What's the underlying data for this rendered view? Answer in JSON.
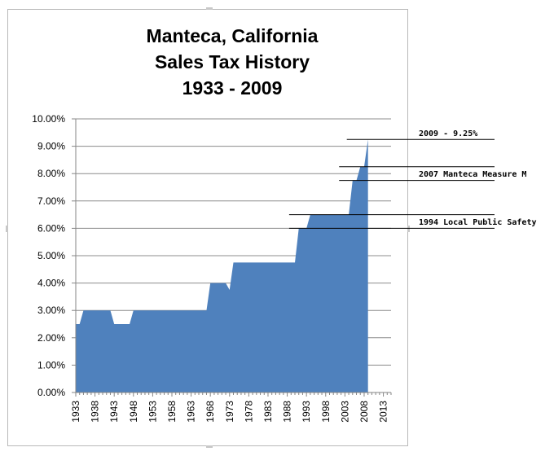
{
  "chart_data": {
    "type": "area",
    "title_lines": [
      "Manteca, California",
      "Sales Tax History",
      "1933 - 2009"
    ],
    "xlabel": "",
    "ylabel": "",
    "xlim": [
      1933,
      2015
    ],
    "ylim": [
      0,
      10
    ],
    "x_ticks": [
      1933,
      1938,
      1943,
      1948,
      1953,
      1958,
      1963,
      1968,
      1973,
      1978,
      1983,
      1988,
      1993,
      1998,
      2003,
      2008,
      2013
    ],
    "y_ticks": [
      0,
      1,
      2,
      3,
      4,
      5,
      6,
      7,
      8,
      9,
      10
    ],
    "y_tick_labels": [
      "0.00%",
      "1.00%",
      "2.00%",
      "3.00%",
      "4.00%",
      "5.00%",
      "6.00%",
      "7.00%",
      "8.00%",
      "9.00%",
      "10.00%"
    ],
    "grid": true,
    "fill_color": "#4f81bd",
    "series": [
      {
        "x": [
          1933,
          1934,
          1935,
          1936,
          1937,
          1938,
          1939,
          1940,
          1941,
          1942,
          1943,
          1944,
          1945,
          1946,
          1947,
          1948,
          1949,
          1950,
          1967,
          1968,
          1972,
          1973,
          1974,
          1990,
          1991,
          1993,
          1994,
          1995,
          2004,
          2005,
          2006,
          2007,
          2008,
          2009
        ],
        "y": [
          2.5,
          2.5,
          3.0,
          3.0,
          3.0,
          3.0,
          3.0,
          3.0,
          3.0,
          3.0,
          2.5,
          2.5,
          2.5,
          2.5,
          2.5,
          3.0,
          3.0,
          3.0,
          3.0,
          4.0,
          4.0,
          3.75,
          4.75,
          4.75,
          6.0,
          6.0,
          6.5,
          6.5,
          6.5,
          7.75,
          7.75,
          8.25,
          8.25,
          9.25
        ]
      }
    ],
    "annotations": [
      {
        "text": "2009 - 9.25%",
        "year": 2009,
        "value": 9.25
      },
      {
        "text": "2007 Manteca Measure M",
        "year": 2007,
        "value": 8.25,
        "lower_value": 7.75
      },
      {
        "text": "1994 Local Public Safety",
        "year": 1994,
        "value": 6.5,
        "lower_value": 6.0
      }
    ]
  }
}
